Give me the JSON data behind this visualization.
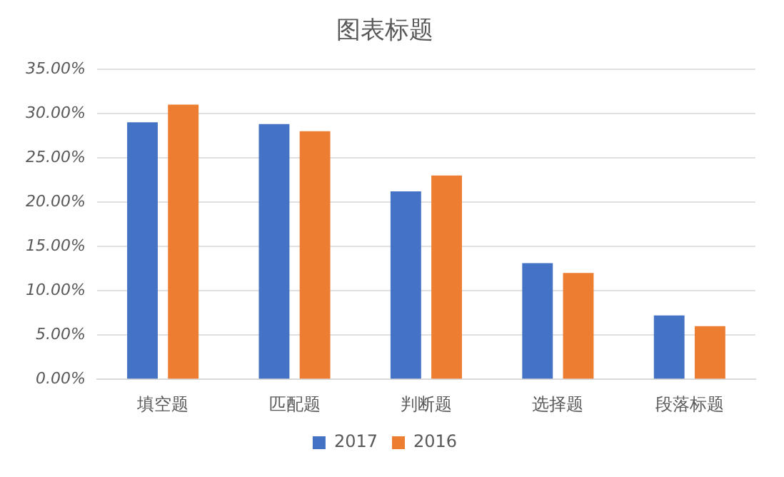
{
  "chart_data": {
    "type": "bar",
    "title": "图表标题",
    "categories": [
      "填空题",
      "匹配题",
      "判断题",
      "选择题",
      "段落标题"
    ],
    "series": [
      {
        "name": "2017",
        "color": "#4472c4",
        "values": [
          29,
          28.8,
          21.2,
          13.1,
          7.2
        ]
      },
      {
        "name": "2016",
        "color": "#ed7d31",
        "values": [
          31,
          28,
          23,
          12,
          6
        ]
      }
    ],
    "ylim": [
      0,
      35
    ],
    "yticks": [
      {
        "value": 0,
        "label": "0.00%"
      },
      {
        "value": 5,
        "label": "5.00%"
      },
      {
        "value": 10,
        "label": "10.00%"
      },
      {
        "value": 15,
        "label": "15.00%"
      },
      {
        "value": 20,
        "label": "20.00%"
      },
      {
        "value": 25,
        "label": "25.00%"
      },
      {
        "value": 30,
        "label": "30.00%"
      },
      {
        "value": 35,
        "label": "35.00%"
      }
    ],
    "grid": "y",
    "legend": "bottom"
  }
}
